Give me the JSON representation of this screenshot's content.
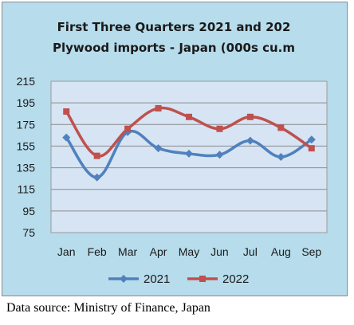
{
  "chart_data": {
    "type": "line",
    "title_lines": [
      "First Three Quarters 2021 and 202",
      "Plywood imports - Japan (000s cu.m"
    ],
    "categories": [
      "Jan",
      "Feb",
      "Mar",
      "Apr",
      "May",
      "Jun",
      "Jul",
      "Aug",
      "Sep"
    ],
    "ylim": [
      75,
      215
    ],
    "yticks": [
      75,
      95,
      115,
      135,
      155,
      175,
      195,
      215
    ],
    "grid": true,
    "legend_position": "bottom",
    "series": [
      {
        "name": "2021",
        "color": "#4f81bd",
        "marker": "diamond",
        "values": [
          163,
          126,
          168,
          153,
          148,
          147,
          160,
          145,
          161
        ]
      },
      {
        "name": "2022",
        "color": "#c0504d",
        "marker": "square",
        "values": [
          187,
          146,
          171,
          190,
          182,
          171,
          182,
          172,
          153
        ]
      }
    ]
  },
  "source_text": "Data source: Ministry of Finance, Japan"
}
